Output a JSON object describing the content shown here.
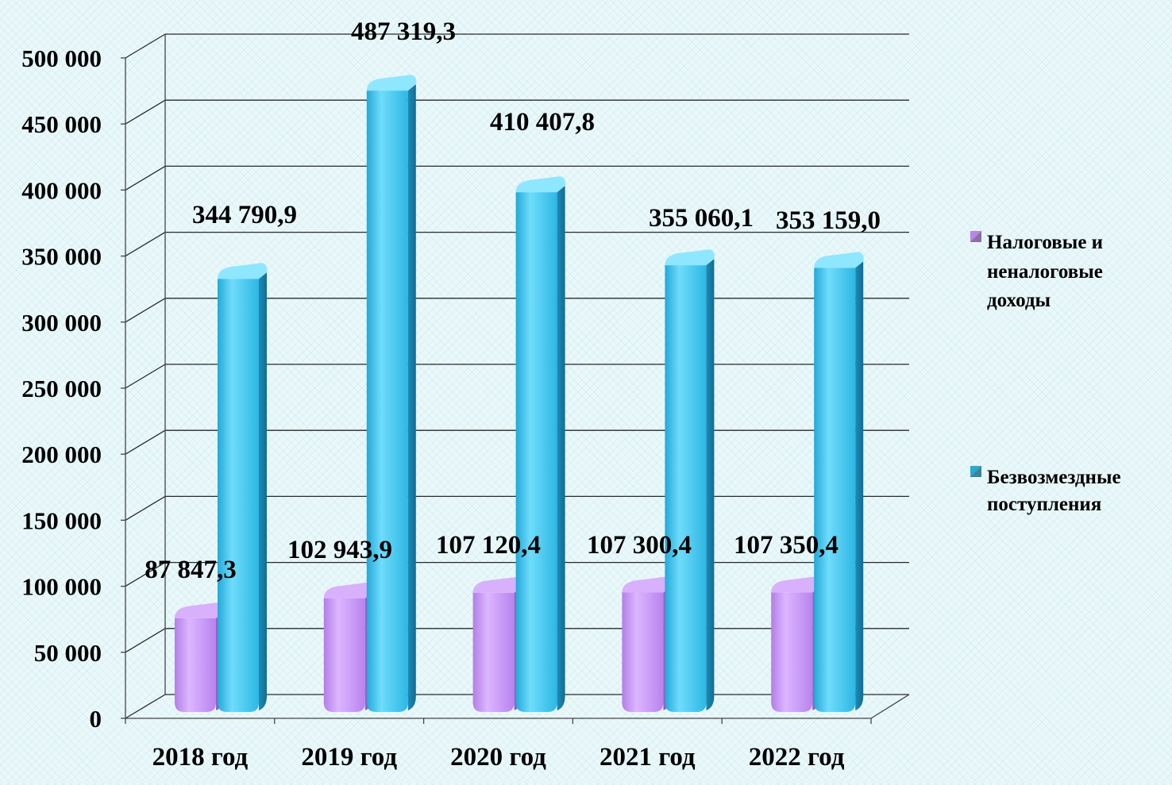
{
  "chart_data": {
    "type": "bar",
    "title": "",
    "xlabel": "",
    "ylabel": "",
    "categories": [
      "2018 год",
      "2019 год",
      "2020 год",
      "2021 год",
      "2022 год"
    ],
    "series": [
      {
        "name": "Налоговые и неналоговые доходы",
        "values": [
          87847.3,
          102943.9,
          107120.4,
          107300.4,
          107350.4
        ],
        "labels": [
          "87 847,3",
          "102 943,9",
          "107 120,4",
          "107 300,4",
          "107 350,4"
        ],
        "color": "#c896f2"
      },
      {
        "name": "Безвозмездные поступления",
        "values": [
          344790.9,
          487319.3,
          410407.8,
          355060.1,
          353159.0
        ],
        "labels": [
          "344 790,9",
          "487 319,3",
          "410 407,8",
          "355 060,1",
          "353 159,0"
        ],
        "color": "#3ec3ea"
      }
    ],
    "ylim": [
      0,
      500000
    ],
    "y_ticks": [
      0,
      50000,
      100000,
      150000,
      200000,
      250000,
      300000,
      350000,
      400000,
      450000,
      500000
    ],
    "y_tick_labels": [
      "0",
      "50 000",
      "100 000",
      "150 000",
      "200 000",
      "250 000",
      "300 000",
      "350 000",
      "400 000",
      "450 000",
      "500 000"
    ],
    "grid": true,
    "legend_position": "right",
    "legend": [
      {
        "lines": [
          "Налоговые и",
          "неналоговые",
          "доходы"
        ],
        "color": "#b886e6"
      },
      {
        "lines": [
          "Безвозмездные",
          "поступления"
        ],
        "color": "#2ba9d1"
      }
    ],
    "style": "3d-cylinder"
  }
}
